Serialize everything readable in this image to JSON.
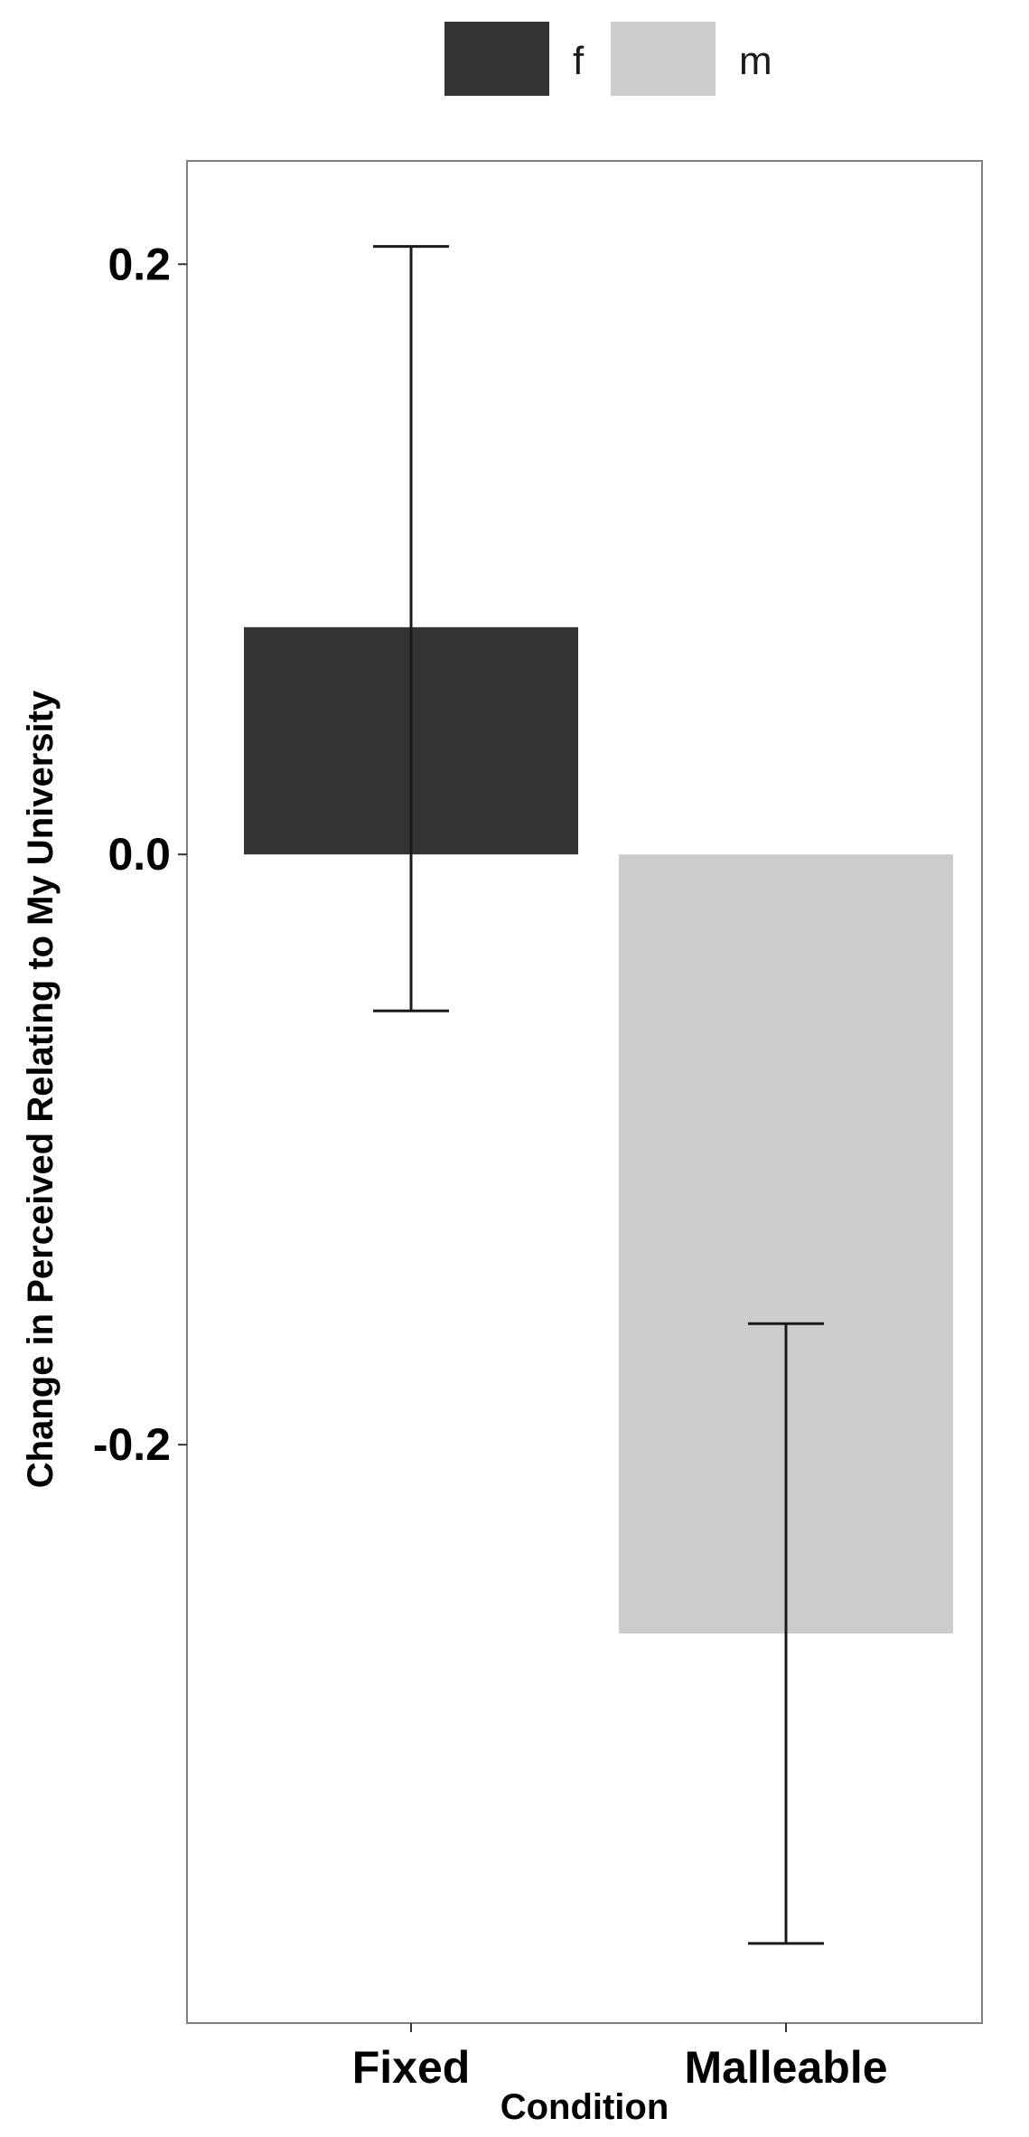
{
  "chart_data": {
    "type": "bar",
    "title": "",
    "xlabel": "Condition",
    "ylabel": "Change in Perceived Relating to My University",
    "categories": [
      "Fixed",
      "Malleable"
    ],
    "series": [
      {
        "name": "f",
        "color": "#333333",
        "values": [
          0.077,
          null
        ],
        "error_low": [
          -0.053,
          null
        ],
        "error_high": [
          0.206,
          null
        ]
      },
      {
        "name": "m",
        "color": "#cccccc",
        "values": [
          null,
          -0.264
        ],
        "error_low": [
          null,
          -0.369
        ],
        "error_high": [
          null,
          -0.159
        ]
      }
    ],
    "yticks": [
      0.2,
      0.0,
      -0.2
    ],
    "ytick_labels": [
      "0.2",
      "0.0",
      "-0.2"
    ],
    "ylim": [
      -0.396,
      0.235
    ],
    "grid": false,
    "legend": "top"
  }
}
